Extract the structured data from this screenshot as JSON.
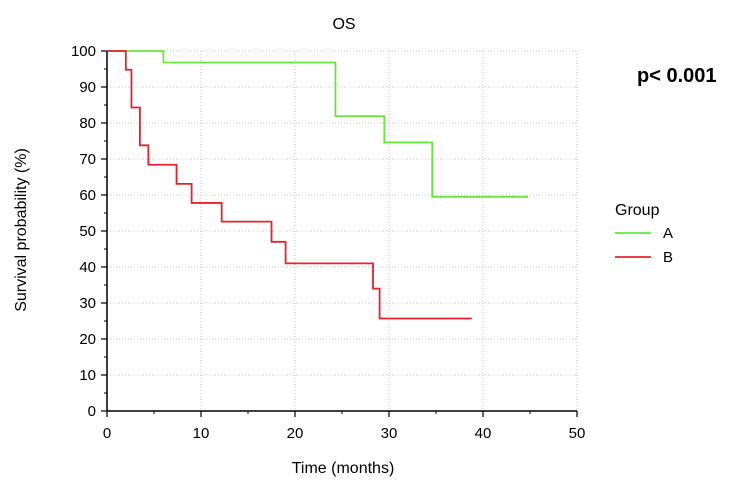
{
  "chart_data": {
    "type": "line",
    "title": "OS",
    "xlabel": "Time (months)",
    "ylabel": "Survival probability (%)",
    "xlim": [
      0,
      50
    ],
    "ylim": [
      0,
      100
    ],
    "xticks": [
      0,
      10,
      20,
      30,
      40,
      50
    ],
    "yticks": [
      0,
      10,
      20,
      30,
      40,
      50,
      60,
      70,
      80,
      90,
      100
    ],
    "grid": true,
    "step": true,
    "annotation": "p< 0.001",
    "legend": {
      "title": "Group",
      "position": "right"
    },
    "series": [
      {
        "name": "A",
        "color": "#66e83a",
        "x": [
          0,
          6,
          24.3,
          29.5,
          34.6,
          44.8
        ],
        "y": [
          100,
          96.8,
          81.9,
          74.6,
          59.5,
          59.5
        ]
      },
      {
        "name": "B",
        "color": "#e8212e",
        "x": [
          0,
          2,
          2.6,
          3.5,
          4.4,
          7.4,
          9,
          12.2,
          17.5,
          19,
          28.3,
          29,
          38.8
        ],
        "y": [
          100,
          94.8,
          84.3,
          73.8,
          68.4,
          63.1,
          57.8,
          52.6,
          47,
          41,
          34,
          25.7,
          25.7
        ]
      }
    ]
  }
}
